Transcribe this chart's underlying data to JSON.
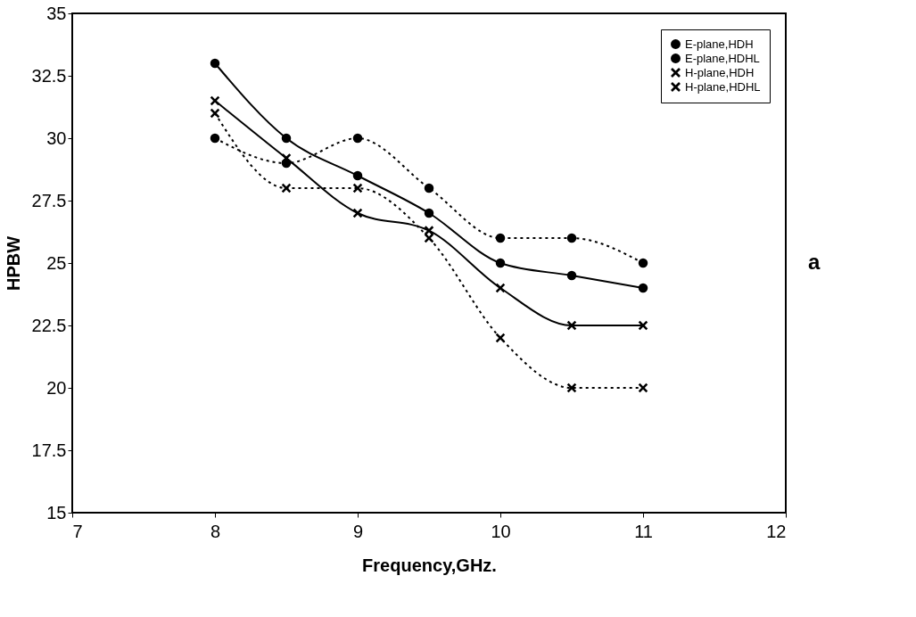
{
  "chart_data": {
    "type": "line",
    "xlabel": "Frequency,GHz.",
    "ylabel": "HPBW",
    "x": [
      8,
      8.5,
      9,
      9.5,
      10,
      10.5,
      11
    ],
    "series": [
      {
        "name": "E-plane,HDH",
        "color": "#000000",
        "marker": "circle",
        "line_style": "dotted",
        "values": [
          30,
          29,
          30,
          28,
          26,
          26,
          25
        ]
      },
      {
        "name": "E-plane,HDHL",
        "color": "#000000",
        "marker": "circle",
        "line_style": "solid",
        "values": [
          33,
          30,
          28.5,
          27,
          25,
          24.5,
          24
        ]
      },
      {
        "name": "H-plane,HDH",
        "color": "#000000",
        "marker": "cross",
        "line_style": "dotted",
        "values": [
          31,
          28,
          28,
          26,
          22,
          20,
          20
        ]
      },
      {
        "name": "H-plane,HDHL",
        "color": "#000000",
        "marker": "cross",
        "line_style": "solid",
        "values": [
          31.5,
          29.2,
          27,
          26.3,
          24,
          22.5,
          22.5
        ]
      }
    ],
    "xlim": [
      7,
      12
    ],
    "xticks": [
      7,
      8,
      9,
      10,
      11,
      12
    ],
    "ylim": [
      15,
      35
    ],
    "yticks": [
      15,
      17.5,
      20,
      22.5,
      25,
      27.5,
      30,
      32.5,
      35
    ],
    "grid": false,
    "legend": "top right",
    "annotations": [
      "a"
    ]
  }
}
